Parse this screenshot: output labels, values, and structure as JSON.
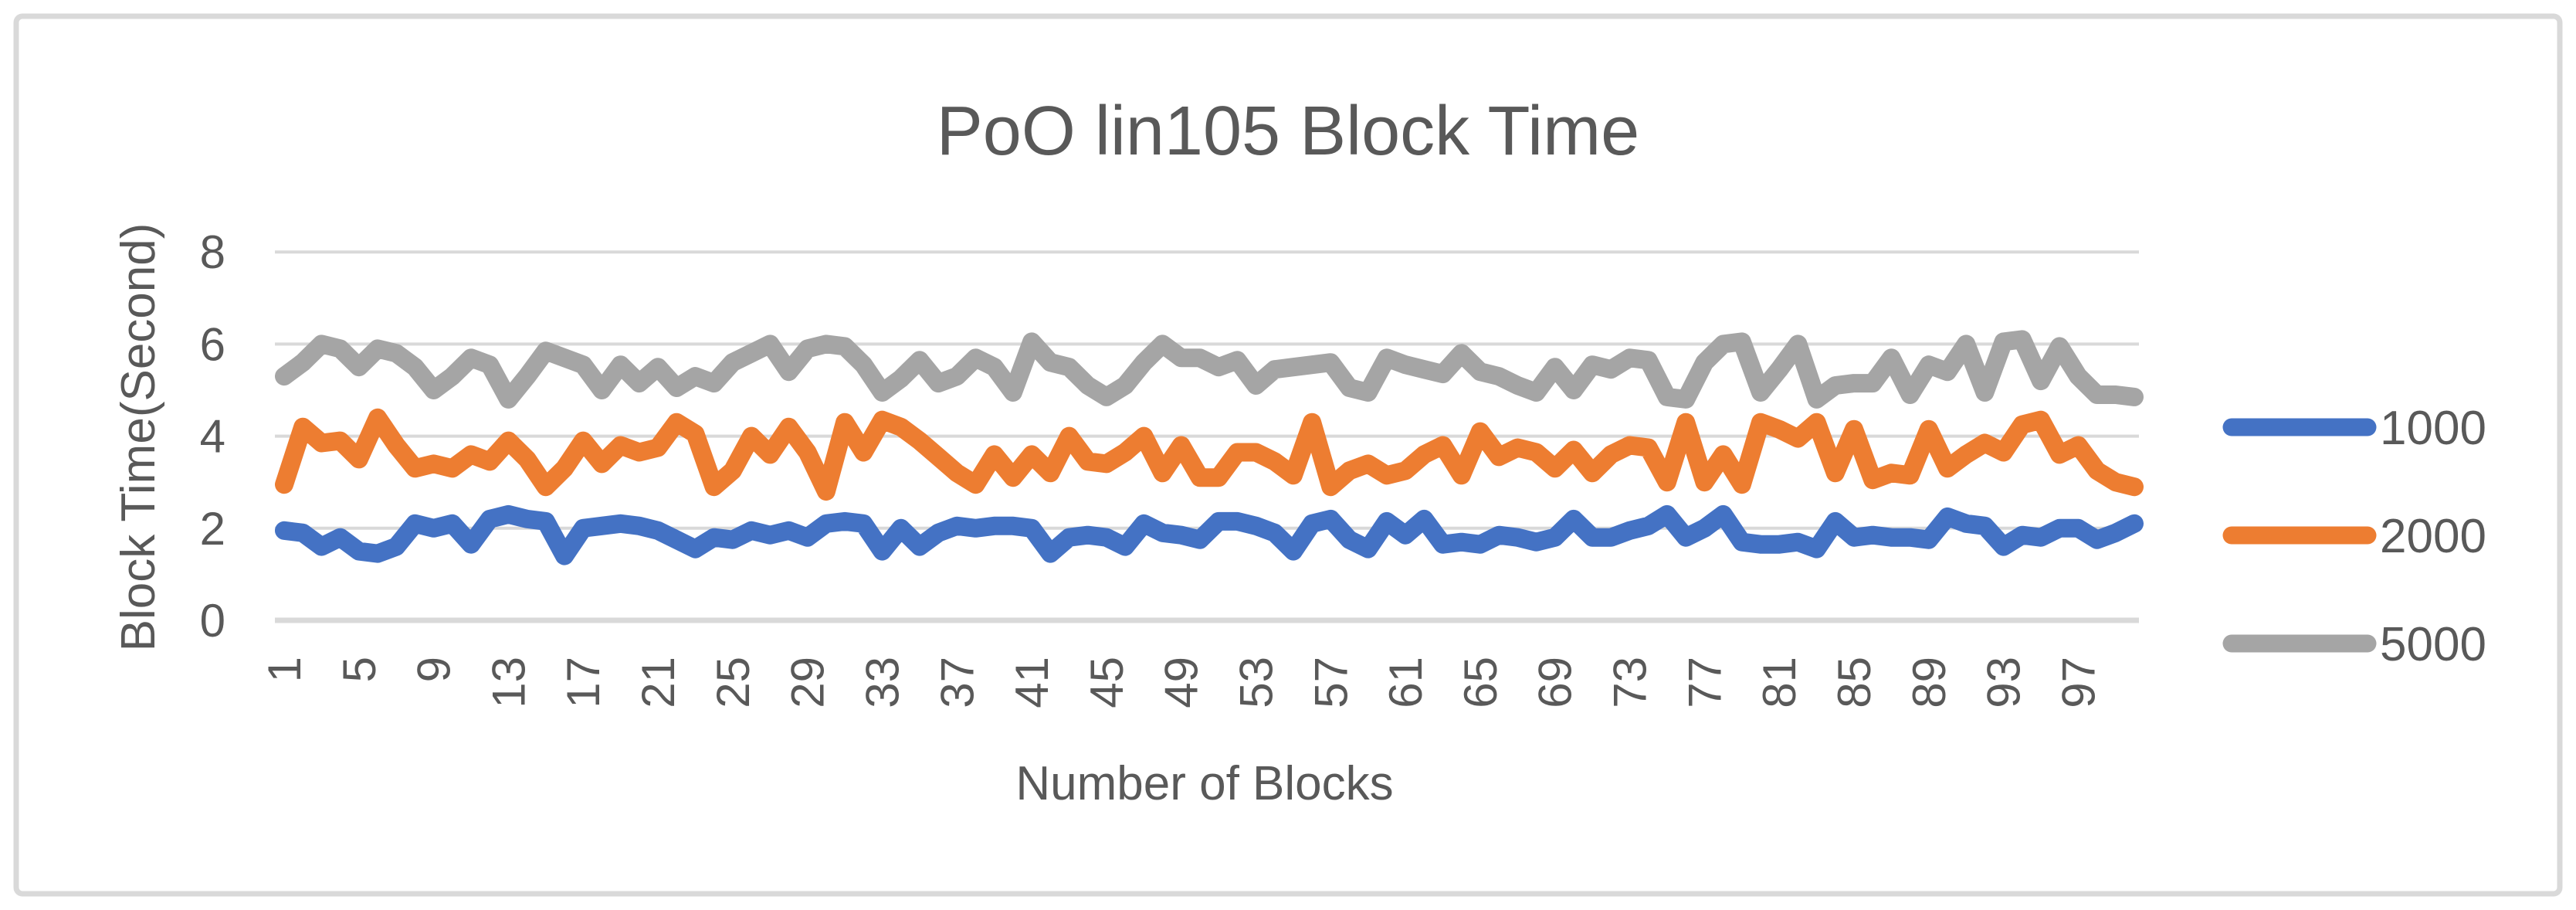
{
  "chart": {
    "frame_border_color": "#D9D9D9",
    "background_color": "#FFFFFF",
    "gridline_color": "#D9D9D9",
    "text_color": "#595959"
  },
  "chart_data": {
    "type": "line",
    "title": "PoO lin105 Block Time",
    "xlabel": "Number of Blocks",
    "ylabel": "Block Time(Second)",
    "ylim": [
      0,
      8
    ],
    "y_ticks": [
      0,
      2,
      4,
      6,
      8
    ],
    "x_tick_labels": [
      "1",
      "5",
      "9",
      "13",
      "17",
      "21",
      "25",
      "29",
      "33",
      "37",
      "41",
      "45",
      "49",
      "53",
      "57",
      "61",
      "65",
      "69",
      "73",
      "77",
      "81",
      "85",
      "89",
      "93",
      "97"
    ],
    "x_tick_step": 4,
    "grid": true,
    "legend_position": "right",
    "x": [
      1,
      2,
      3,
      4,
      5,
      6,
      7,
      8,
      9,
      10,
      11,
      12,
      13,
      14,
      15,
      16,
      17,
      18,
      19,
      20,
      21,
      22,
      23,
      24,
      25,
      26,
      27,
      28,
      29,
      30,
      31,
      32,
      33,
      34,
      35,
      36,
      37,
      38,
      39,
      40,
      41,
      42,
      43,
      44,
      45,
      46,
      47,
      48,
      49,
      50,
      51,
      52,
      53,
      54,
      55,
      56,
      57,
      58,
      59,
      60,
      61,
      62,
      63,
      64,
      65,
      66,
      67,
      68,
      69,
      70,
      71,
      72,
      73,
      74,
      75,
      76,
      77,
      78,
      79,
      80,
      81,
      82,
      83,
      84,
      85,
      86,
      87,
      88,
      89,
      90,
      91,
      92,
      93,
      94,
      95,
      96,
      97,
      98,
      99,
      100
    ],
    "series": [
      {
        "name": "1000",
        "color": "#4472C4",
        "values": [
          1.95,
          1.9,
          1.6,
          1.8,
          1.5,
          1.45,
          1.6,
          2.1,
          2.0,
          2.1,
          1.65,
          2.2,
          2.3,
          2.2,
          2.15,
          1.4,
          2.0,
          2.05,
          2.1,
          2.05,
          1.95,
          1.75,
          1.55,
          1.8,
          1.75,
          1.95,
          1.85,
          1.95,
          1.8,
          2.1,
          2.15,
          2.1,
          1.5,
          2.0,
          1.6,
          1.9,
          2.05,
          2.0,
          2.05,
          2.05,
          2.0,
          1.45,
          1.8,
          1.85,
          1.8,
          1.6,
          2.1,
          1.9,
          1.85,
          1.75,
          2.15,
          2.15,
          2.05,
          1.9,
          1.5,
          2.1,
          2.2,
          1.75,
          1.55,
          2.15,
          1.85,
          2.2,
          1.65,
          1.7,
          1.65,
          1.85,
          1.8,
          1.7,
          1.8,
          2.2,
          1.8,
          1.8,
          1.95,
          2.05,
          2.3,
          1.8,
          2.0,
          2.3,
          1.7,
          1.65,
          1.65,
          1.7,
          1.55,
          2.15,
          1.8,
          1.85,
          1.8,
          1.8,
          1.75,
          2.25,
          2.1,
          2.05,
          1.6,
          1.85,
          1.8,
          2.0,
          2.0,
          1.75,
          1.9,
          2.1
        ]
      },
      {
        "name": "2000",
        "color": "#ED7D31",
        "values": [
          2.95,
          4.2,
          3.85,
          3.9,
          3.5,
          4.4,
          3.8,
          3.3,
          3.4,
          3.3,
          3.6,
          3.45,
          3.9,
          3.5,
          2.9,
          3.3,
          3.9,
          3.4,
          3.8,
          3.65,
          3.75,
          4.3,
          4.05,
          2.9,
          3.25,
          4.0,
          3.6,
          4.2,
          3.65,
          2.8,
          4.3,
          3.65,
          4.35,
          4.2,
          3.9,
          3.55,
          3.2,
          2.95,
          3.6,
          3.1,
          3.6,
          3.2,
          4.0,
          3.45,
          3.4,
          3.65,
          4.0,
          3.2,
          3.8,
          3.1,
          3.1,
          3.65,
          3.65,
          3.45,
          3.15,
          4.3,
          2.9,
          3.25,
          3.4,
          3.15,
          3.25,
          3.6,
          3.8,
          3.15,
          4.1,
          3.55,
          3.75,
          3.65,
          3.3,
          3.7,
          3.2,
          3.6,
          3.8,
          3.75,
          3.0,
          4.3,
          3.0,
          3.6,
          2.95,
          4.3,
          4.15,
          3.95,
          4.3,
          3.2,
          4.15,
          3.05,
          3.2,
          3.15,
          4.15,
          3.3,
          3.6,
          3.85,
          3.65,
          4.25,
          4.35,
          3.6,
          3.8,
          3.25,
          3.0,
          2.9
        ]
      },
      {
        "name": "5000",
        "color": "#A5A5A5",
        "values": [
          5.3,
          5.6,
          6.0,
          5.9,
          5.5,
          5.9,
          5.8,
          5.5,
          5.0,
          5.3,
          5.7,
          5.55,
          4.8,
          5.3,
          5.85,
          5.7,
          5.55,
          5.0,
          5.55,
          5.15,
          5.5,
          5.05,
          5.3,
          5.15,
          5.6,
          5.8,
          6.0,
          5.4,
          5.9,
          6.0,
          5.95,
          5.55,
          4.95,
          5.25,
          5.65,
          5.15,
          5.3,
          5.7,
          5.5,
          4.95,
          6.05,
          5.6,
          5.5,
          5.1,
          4.85,
          5.1,
          5.6,
          6.0,
          5.7,
          5.7,
          5.5,
          5.65,
          5.1,
          5.45,
          5.5,
          5.55,
          5.6,
          5.05,
          4.95,
          5.7,
          5.55,
          5.45,
          5.35,
          5.8,
          5.4,
          5.3,
          5.1,
          4.95,
          5.5,
          5.0,
          5.55,
          5.45,
          5.7,
          5.65,
          4.85,
          4.8,
          5.6,
          6.0,
          6.05,
          4.95,
          5.45,
          6.0,
          4.8,
          5.1,
          5.15,
          5.15,
          5.7,
          4.9,
          5.55,
          5.4,
          6.0,
          4.95,
          6.05,
          6.1,
          5.2,
          5.95,
          5.3,
          4.9,
          4.9,
          4.85
        ]
      }
    ]
  }
}
